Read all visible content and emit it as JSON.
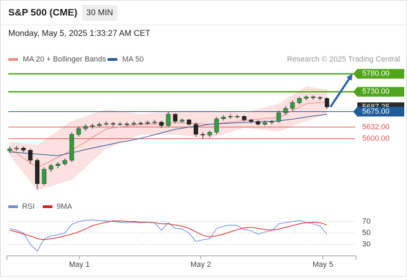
{
  "header": {
    "title": "S&P 500 (CME)",
    "interval": "30 MIN",
    "timestamp": "Monday, May 5, 2025 1:33:27 AM CET"
  },
  "chart_data": [
    {
      "type": "candlestick",
      "source": "Research © 2025 Trading Central",
      "xlim": [
        -0.2,
        50.1
      ],
      "xticks": [
        {
          "value": 10.1,
          "label": "May 1"
        },
        {
          "value": 27.7,
          "label": "May 2"
        },
        {
          "value": 45.4,
          "label": "May 5"
        }
      ],
      "ylim": [
        5440,
        5860
      ],
      "up_color": "#2e9e3e",
      "down_color": "#222222",
      "candles": {
        "open": [
          5566,
          5572,
          5574,
          5568,
          5540,
          5475,
          5515,
          5525,
          5530,
          5540,
          5612,
          5628,
          5634,
          5636,
          5640,
          5642,
          5640,
          5641,
          5640,
          5643,
          5642,
          5645,
          5646,
          5636,
          5668,
          5648,
          5652,
          5640,
          5612,
          5610,
          5618,
          5655,
          5660,
          5662,
          5662,
          5652,
          5648,
          5640,
          5645,
          5648,
          5672,
          5684,
          5700,
          5712,
          5716,
          5714,
          5712
        ],
        "high": [
          5578,
          5580,
          5578,
          5572,
          5545,
          5520,
          5530,
          5535,
          5545,
          5618,
          5634,
          5640,
          5642,
          5645,
          5648,
          5646,
          5646,
          5646,
          5648,
          5648,
          5650,
          5652,
          5650,
          5675,
          5670,
          5656,
          5655,
          5645,
          5618,
          5622,
          5660,
          5665,
          5668,
          5667,
          5665,
          5655,
          5652,
          5650,
          5652,
          5678,
          5690,
          5706,
          5716,
          5720,
          5720,
          5718,
          5715
        ],
        "low": [
          5560,
          5566,
          5562,
          5530,
          5460,
          5470,
          5508,
          5518,
          5525,
          5535,
          5606,
          5622,
          5628,
          5632,
          5636,
          5634,
          5636,
          5635,
          5636,
          5637,
          5638,
          5640,
          5630,
          5632,
          5642,
          5644,
          5636,
          5605,
          5600,
          5604,
          5612,
          5650,
          5655,
          5656,
          5648,
          5642,
          5636,
          5636,
          5640,
          5644,
          5665,
          5678,
          5695,
          5706,
          5708,
          5706,
          5682
        ],
        "close": [
          5572,
          5574,
          5568,
          5540,
          5475,
          5515,
          5525,
          5530,
          5540,
          5612,
          5628,
          5634,
          5636,
          5640,
          5642,
          5640,
          5641,
          5640,
          5643,
          5642,
          5645,
          5646,
          5636,
          5668,
          5648,
          5652,
          5640,
          5612,
          5610,
          5618,
          5655,
          5660,
          5662,
          5662,
          5652,
          5648,
          5640,
          5645,
          5648,
          5672,
          5684,
          5700,
          5712,
          5716,
          5714,
          5712,
          5688
        ]
      },
      "series": [
        {
          "name": "MA 20 + Bollinger Bands",
          "color": "#f08a8a",
          "band_color": "#fde0e0",
          "values": [
            5572,
            5560,
            5546,
            5533,
            5520,
            5529,
            5539,
            5548,
            5558,
            5568,
            5580,
            5591,
            5604,
            5615,
            5627,
            5630,
            5632,
            5635,
            5637,
            5640,
            5640,
            5641,
            5642,
            5643,
            5644,
            5644,
            5643,
            5642,
            5641,
            5640,
            5642,
            5644,
            5646,
            5648,
            5651,
            5652,
            5654,
            5656,
            5657,
            5658,
            5668,
            5678,
            5688,
            5697,
            5699,
            5700,
            5702
          ],
          "upper": [
            5592,
            5590,
            5587,
            5585,
            5582,
            5595,
            5609,
            5622,
            5636,
            5649,
            5656,
            5662,
            5669,
            5675,
            5682,
            5679,
            5676,
            5674,
            5671,
            5668,
            5670,
            5672,
            5674,
            5676,
            5678,
            5678,
            5678,
            5678,
            5678,
            5678,
            5677,
            5676,
            5674,
            5673,
            5672,
            5677,
            5682,
            5687,
            5692,
            5697,
            5709,
            5721,
            5733,
            5745,
            5742,
            5739,
            5736
          ],
          "lower": [
            5553,
            5529,
            5505,
            5481,
            5457,
            5463,
            5469,
            5474,
            5480,
            5486,
            5503,
            5520,
            5538,
            5555,
            5572,
            5580,
            5588,
            5595,
            5603,
            5611,
            5611,
            5611,
            5611,
            5611,
            5611,
            5609,
            5607,
            5605,
            5603,
            5601,
            5607,
            5613,
            5618,
            5624,
            5630,
            5628,
            5626,
            5624,
            5622,
            5620,
            5627,
            5635,
            5642,
            5649,
            5655,
            5662,
            5668
          ]
        },
        {
          "name": "MA 50",
          "color": "#2d5c9e",
          "values": [
            5563,
            5562,
            5560,
            5559,
            5557,
            5556,
            5554,
            5553,
            5557,
            5561,
            5565,
            5570,
            5574,
            5578,
            5582,
            5586,
            5590,
            5593,
            5597,
            5601,
            5606,
            5611,
            5616,
            5621,
            5626,
            5629,
            5632,
            5634,
            5637,
            5640,
            5641,
            5642,
            5643,
            5644,
            5645,
            5646,
            5647,
            5648,
            5648,
            5649,
            5652,
            5654,
            5657,
            5660,
            5663,
            5665,
            5668
          ]
        }
      ],
      "last_price": {
        "value": 5687.25,
        "label": "5687.25",
        "color": "#2b2b2b"
      },
      "levels": [
        {
          "value": 5780,
          "label": "5780.00",
          "color": "#4fa61c",
          "boxed": true
        },
        {
          "value": 5730,
          "label": "5730.00",
          "color": "#4fa61c",
          "boxed": true
        },
        {
          "value": 5675,
          "label": "5675.00",
          "color": "#1f5c9c",
          "boxed": true
        },
        {
          "value": 5632,
          "label": "5632.00",
          "color": "#e05555",
          "boxed": false
        },
        {
          "value": 5600,
          "label": "5600.00",
          "color": "#e05555",
          "boxed": false
        }
      ],
      "arrow_color": "#2a63b0"
    },
    {
      "type": "line",
      "xlim": [
        -0.2,
        50.1
      ],
      "ylim": [
        10,
        80
      ],
      "yticks": [
        30,
        50,
        70
      ],
      "series": [
        {
          "name": "RSI",
          "color": "#6e8fdc",
          "values": [
            58,
            55,
            50,
            30,
            18,
            40,
            45,
            47,
            50,
            65,
            70,
            72,
            73,
            72,
            71,
            70,
            69,
            68,
            69,
            68,
            69,
            68,
            55,
            68,
            58,
            57,
            50,
            35,
            38,
            40,
            58,
            62,
            64,
            63,
            56,
            54,
            48,
            52,
            54,
            66,
            68,
            70,
            72,
            68,
            66,
            62,
            48
          ]
        },
        {
          "name": "9MA",
          "color": "#e02020",
          "values": [
            55,
            52,
            48,
            45,
            40,
            38,
            40,
            42,
            45,
            48,
            52,
            57,
            63,
            66,
            69,
            71,
            71,
            70,
            70,
            69,
            69,
            68,
            66,
            66,
            64,
            62,
            58,
            52,
            46,
            43,
            45,
            48,
            52,
            56,
            59,
            60,
            58,
            56,
            55,
            57,
            60,
            63,
            66,
            68,
            69,
            68,
            64
          ]
        }
      ]
    }
  ]
}
